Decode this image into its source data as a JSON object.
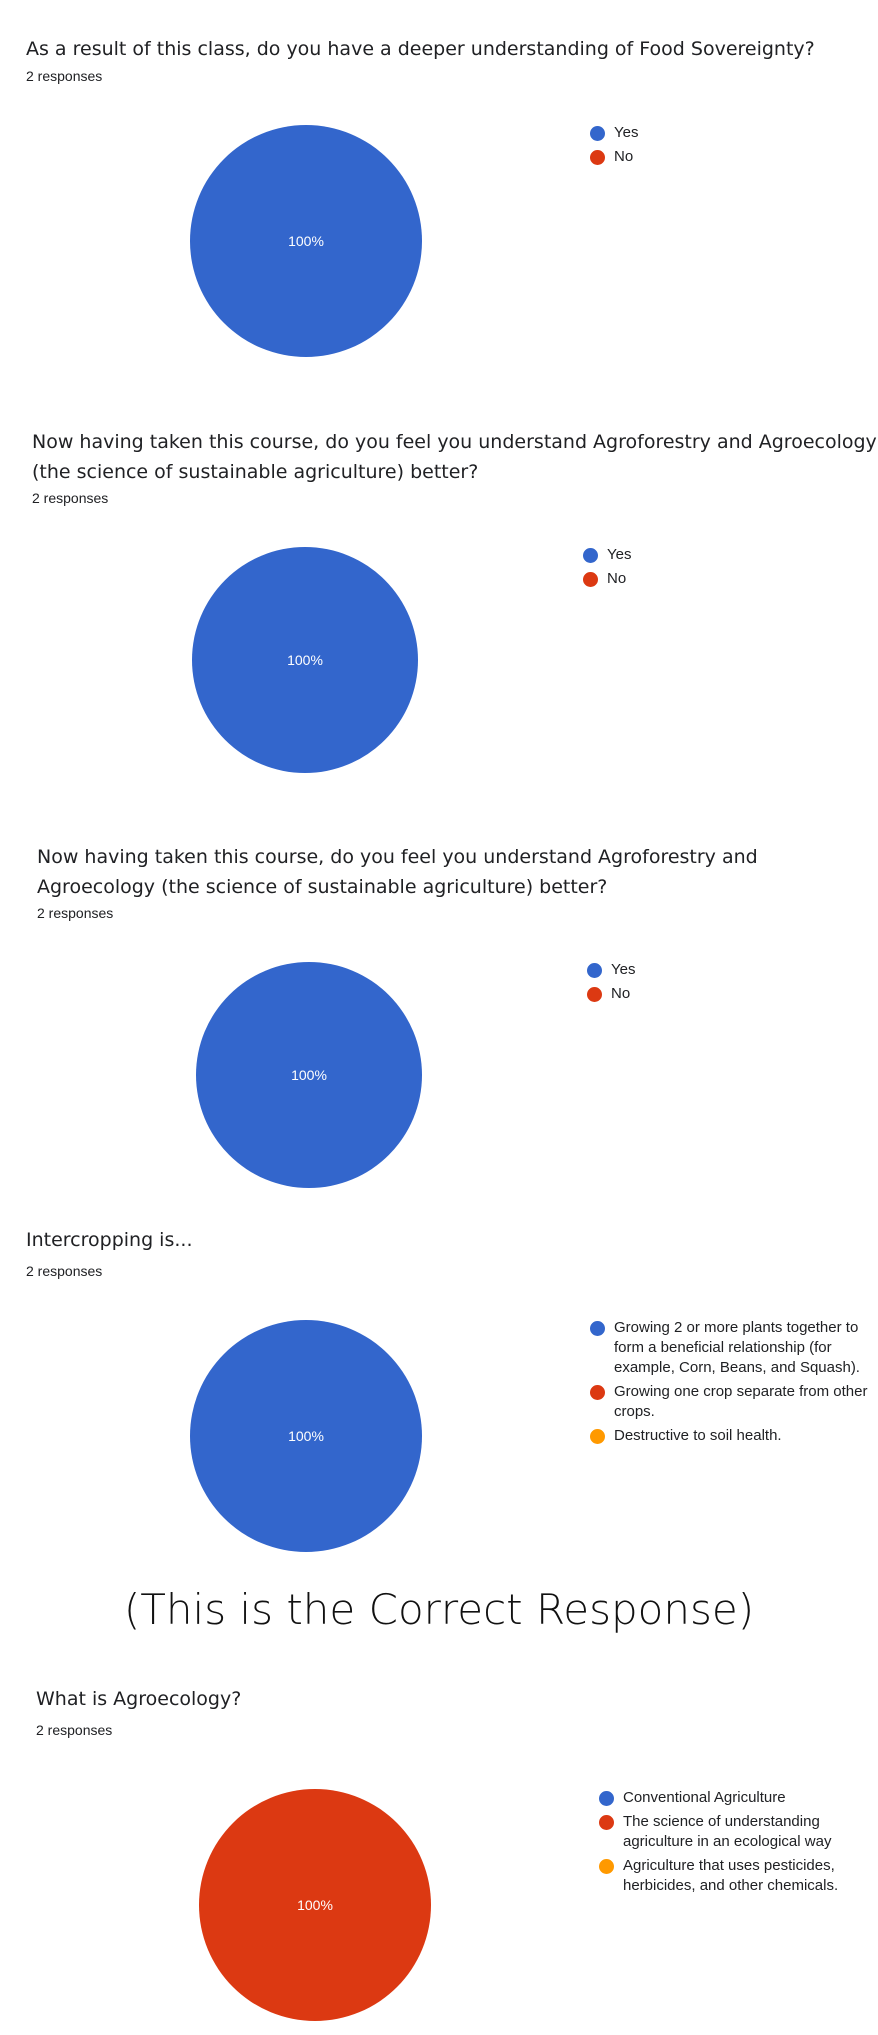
{
  "colors": {
    "blue": "#3366cc",
    "red": "#dc3912",
    "orange": "#ff9900"
  },
  "note": "(This is the Correct Response)",
  "questions": [
    {
      "title": "As a result of this class, do you have a deeper understanding of Food Sovereignty?",
      "responses": "2 responses"
    },
    {
      "title": "Now having taken this course, do you feel you understand Agroforestry and Agroecology (the science of sustainable agriculture) better?",
      "responses": "2 responses"
    },
    {
      "title": "Now having taken this course, do you feel you understand Agroforestry and Agroecology (the science of sustainable agriculture) better?",
      "responses": "2 responses"
    },
    {
      "title": "Intercropping is...",
      "responses": "2 responses"
    },
    {
      "title": "What is Agroecology?",
      "responses": "2 responses"
    }
  ],
  "chart_data": [
    {
      "type": "pie",
      "categories": [
        "Yes",
        "No"
      ],
      "values": [
        100,
        0
      ],
      "colors": [
        "#3366cc",
        "#dc3912"
      ],
      "data_labels": [
        "100%"
      ],
      "legend": "right"
    },
    {
      "type": "pie",
      "categories": [
        "Yes",
        "No"
      ],
      "values": [
        100,
        0
      ],
      "colors": [
        "#3366cc",
        "#dc3912"
      ],
      "data_labels": [
        "100%"
      ],
      "legend": "right"
    },
    {
      "type": "pie",
      "categories": [
        "Yes",
        "No"
      ],
      "values": [
        100,
        0
      ],
      "colors": [
        "#3366cc",
        "#dc3912"
      ],
      "data_labels": [
        "100%"
      ],
      "legend": "right"
    },
    {
      "type": "pie",
      "categories": [
        "Growing 2 or more plants together to form a beneficial relationship (for example, Corn, Beans, and Squash).",
        "Growing one crop separate from other crops.",
        "Destructive to soil health."
      ],
      "values": [
        100,
        0,
        0
      ],
      "colors": [
        "#3366cc",
        "#dc3912",
        "#ff9900"
      ],
      "data_labels": [
        "100%"
      ],
      "legend": "right"
    },
    {
      "type": "pie",
      "categories": [
        "Conventional Agriculture",
        "The science of understanding agriculture in an ecological way",
        "Agriculture that uses pesticides, herbicides, and other chemicals."
      ],
      "values": [
        0,
        100,
        0
      ],
      "colors": [
        "#3366cc",
        "#dc3912",
        "#ff9900"
      ],
      "data_labels": [
        "100%"
      ],
      "legend": "right"
    }
  ]
}
